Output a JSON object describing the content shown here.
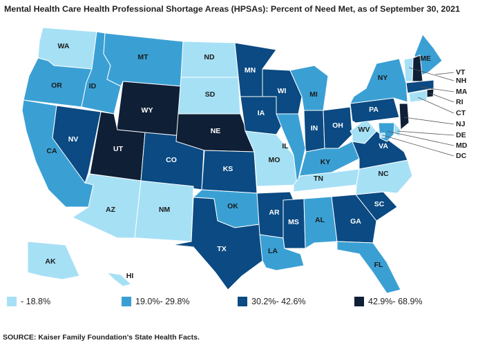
{
  "title": "Mental Health Care Health Professional Shortage Areas (HPSAs): Percent of Need Met, as of September 30, 2021",
  "source": "SOURCE: Kaiser Family Foundation's State Health Facts.",
  "colors": {
    "c1": "#a6e0f5",
    "c2": "#3aa0d4",
    "c3": "#0b4a82",
    "c4": "#0f1f36",
    "border": "#ffffff",
    "label_dark": "#1a1a1a",
    "label_light": "#ffffff"
  },
  "legend": [
    {
      "key": "c1",
      "label": "- 18.8%"
    },
    {
      "key": "c2",
      "label": "19.0%- 29.8%"
    },
    {
      "key": "c3",
      "label": "30.2%- 42.6%"
    },
    {
      "key": "c4",
      "label": "42.9%- 68.9%"
    }
  ],
  "states": {
    "WA": "c1",
    "OR": "c2",
    "CA": "c2",
    "NV": "c3",
    "ID": "c2",
    "MT": "c2",
    "WY": "c4",
    "UT": "c4",
    "AZ": "c1",
    "NM": "c1",
    "CO": "c3",
    "ND": "c1",
    "SD": "c1",
    "NE": "c4",
    "KS": "c3",
    "OK": "c2",
    "TX": "c3",
    "MN": "c3",
    "IA": "c3",
    "MO": "c1",
    "AR": "c3",
    "LA": "c2",
    "WI": "c3",
    "IL": "c2",
    "MI": "c2",
    "IN": "c3",
    "OH": "c3",
    "KY": "c2",
    "TN": "c1",
    "MS": "c3",
    "AL": "c2",
    "GA": "c3",
    "FL": "c2",
    "SC": "c3",
    "NC": "c1",
    "VA": "c3",
    "WV": "c1",
    "PA": "c3",
    "NY": "c2",
    "ME": "c2",
    "VT": "c1",
    "NH": "c4",
    "MA": "c3",
    "RI": "c4",
    "CT": "c1",
    "NJ": "c4",
    "DE": "c1",
    "MD": "c2",
    "DC": "c1",
    "AK": "c1",
    "HI": "c1"
  },
  "labels": {
    "WA": "WA",
    "OR": "OR",
    "CA": "CA",
    "NV": "NV",
    "ID": "ID",
    "MT": "MT",
    "WY": "WY",
    "UT": "UT",
    "AZ": "AZ",
    "NM": "NM",
    "CO": "CO",
    "ND": "ND",
    "SD": "SD",
    "NE": "NE",
    "KS": "KS",
    "OK": "OK",
    "TX": "TX",
    "MN": "MN",
    "IA": "IA",
    "MO": "MO",
    "AR": "AR",
    "LA": "LA",
    "WI": "WI",
    "IL": "IL",
    "MI": "MI",
    "IN": "IN",
    "OH": "OH",
    "KY": "KY",
    "TN": "TN",
    "MS": "MS",
    "AL": "AL",
    "GA": "GA",
    "FL": "FL",
    "SC": "SC",
    "NC": "NC",
    "VA": "VA",
    "WV": "WV",
    "PA": "PA",
    "NY": "NY",
    "ME": "ME",
    "VT": "VT",
    "NH": "NH",
    "MA": "MA",
    "RI": "RI",
    "CT": "CT",
    "NJ": "NJ",
    "DE": "DE",
    "MD": "MD",
    "DC": "DC",
    "AK": "AK",
    "HI": "HI"
  }
}
